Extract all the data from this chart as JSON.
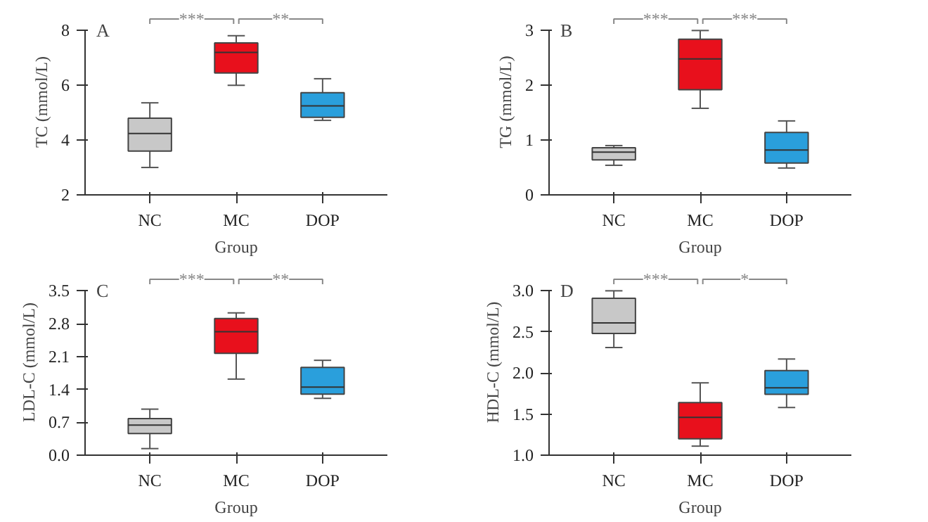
{
  "chart_data": [
    {
      "type": "box",
      "title": "A",
      "xlabel": "Group",
      "ylabel": "TC (mmol/L)",
      "categories": [
        "NC",
        "MC",
        "DOP"
      ],
      "colors": [
        "#c8c8c8",
        "#e8101c",
        "#2a9fdc"
      ],
      "ylim": [
        2,
        8
      ],
      "yticks": [
        2,
        4,
        6,
        8
      ],
      "grid": false,
      "annotations": [
        "***",
        "**"
      ],
      "boxes": [
        {
          "low": 3.0,
          "q1": 3.6,
          "median": 4.24,
          "q3": 4.8,
          "high": 5.36
        },
        {
          "low": 6.0,
          "q1": 6.45,
          "median": 7.2,
          "q3": 7.55,
          "high": 7.81
        },
        {
          "low": 4.72,
          "q1": 4.83,
          "median": 5.25,
          "q3": 5.73,
          "high": 6.24
        }
      ]
    },
    {
      "type": "box",
      "title": "B",
      "xlabel": "Group",
      "ylabel": "TG (mmol/L)",
      "categories": [
        "NC",
        "MC",
        "DOP"
      ],
      "colors": [
        "#c8c8c8",
        "#e8101c",
        "#2a9fdc"
      ],
      "ylim": [
        0,
        3
      ],
      "yticks": [
        0,
        1,
        2,
        3
      ],
      "grid": false,
      "annotations": [
        "***",
        "***"
      ],
      "boxes": [
        {
          "low": 0.54,
          "q1": 0.64,
          "median": 0.78,
          "q3": 0.86,
          "high": 0.9
        },
        {
          "low": 1.58,
          "q1": 1.92,
          "median": 2.48,
          "q3": 2.84,
          "high": 3.0
        },
        {
          "low": 0.49,
          "q1": 0.58,
          "median": 0.82,
          "q3": 1.14,
          "high": 1.35
        }
      ]
    },
    {
      "type": "box",
      "title": "C",
      "xlabel": "Group",
      "ylabel": "LDL-C (mmol/L)",
      "categories": [
        "NC",
        "MC",
        "DOP"
      ],
      "colors": [
        "#c8c8c8",
        "#e8101c",
        "#2a9fdc"
      ],
      "ylim": [
        0,
        3.5
      ],
      "yticks": [
        {
          "value": 0,
          "label": "0.0"
        },
        0.7,
        1.4,
        2.1,
        2.8,
        3.5
      ],
      "grid": false,
      "annotations": [
        "***",
        "**"
      ],
      "boxes": [
        {
          "low": 0.14,
          "q1": 0.46,
          "median": 0.64,
          "q3": 0.78,
          "high": 0.98
        },
        {
          "low": 1.62,
          "q1": 2.17,
          "median": 2.63,
          "q3": 2.91,
          "high": 3.03
        },
        {
          "low": 1.21,
          "q1": 1.3,
          "median": 1.45,
          "q3": 1.87,
          "high": 2.02
        }
      ]
    },
    {
      "type": "box",
      "title": "D",
      "xlabel": "Group",
      "ylabel": "HDL-C (mmol/L)",
      "categories": [
        "NC",
        "MC",
        "DOP"
      ],
      "colors": [
        "#c8c8c8",
        "#e8101c",
        "#2a9fdc"
      ],
      "ylim": [
        1,
        3
      ],
      "yticks": [
        {
          "value": 1,
          "label": "1.0"
        },
        1.5,
        {
          "value": 2,
          "label": "2.0"
        },
        2.5,
        {
          "value": 3,
          "label": "3.0"
        }
      ],
      "grid": false,
      "annotations": [
        "***",
        "*"
      ],
      "boxes": [
        {
          "low": 2.31,
          "q1": 2.48,
          "median": 2.61,
          "q3": 2.91,
          "high": 3.0
        },
        {
          "low": 1.11,
          "q1": 1.2,
          "median": 1.46,
          "q3": 1.64,
          "high": 1.88
        },
        {
          "low": 1.58,
          "q1": 1.74,
          "median": 1.82,
          "q3": 2.03,
          "high": 2.17
        }
      ]
    }
  ]
}
